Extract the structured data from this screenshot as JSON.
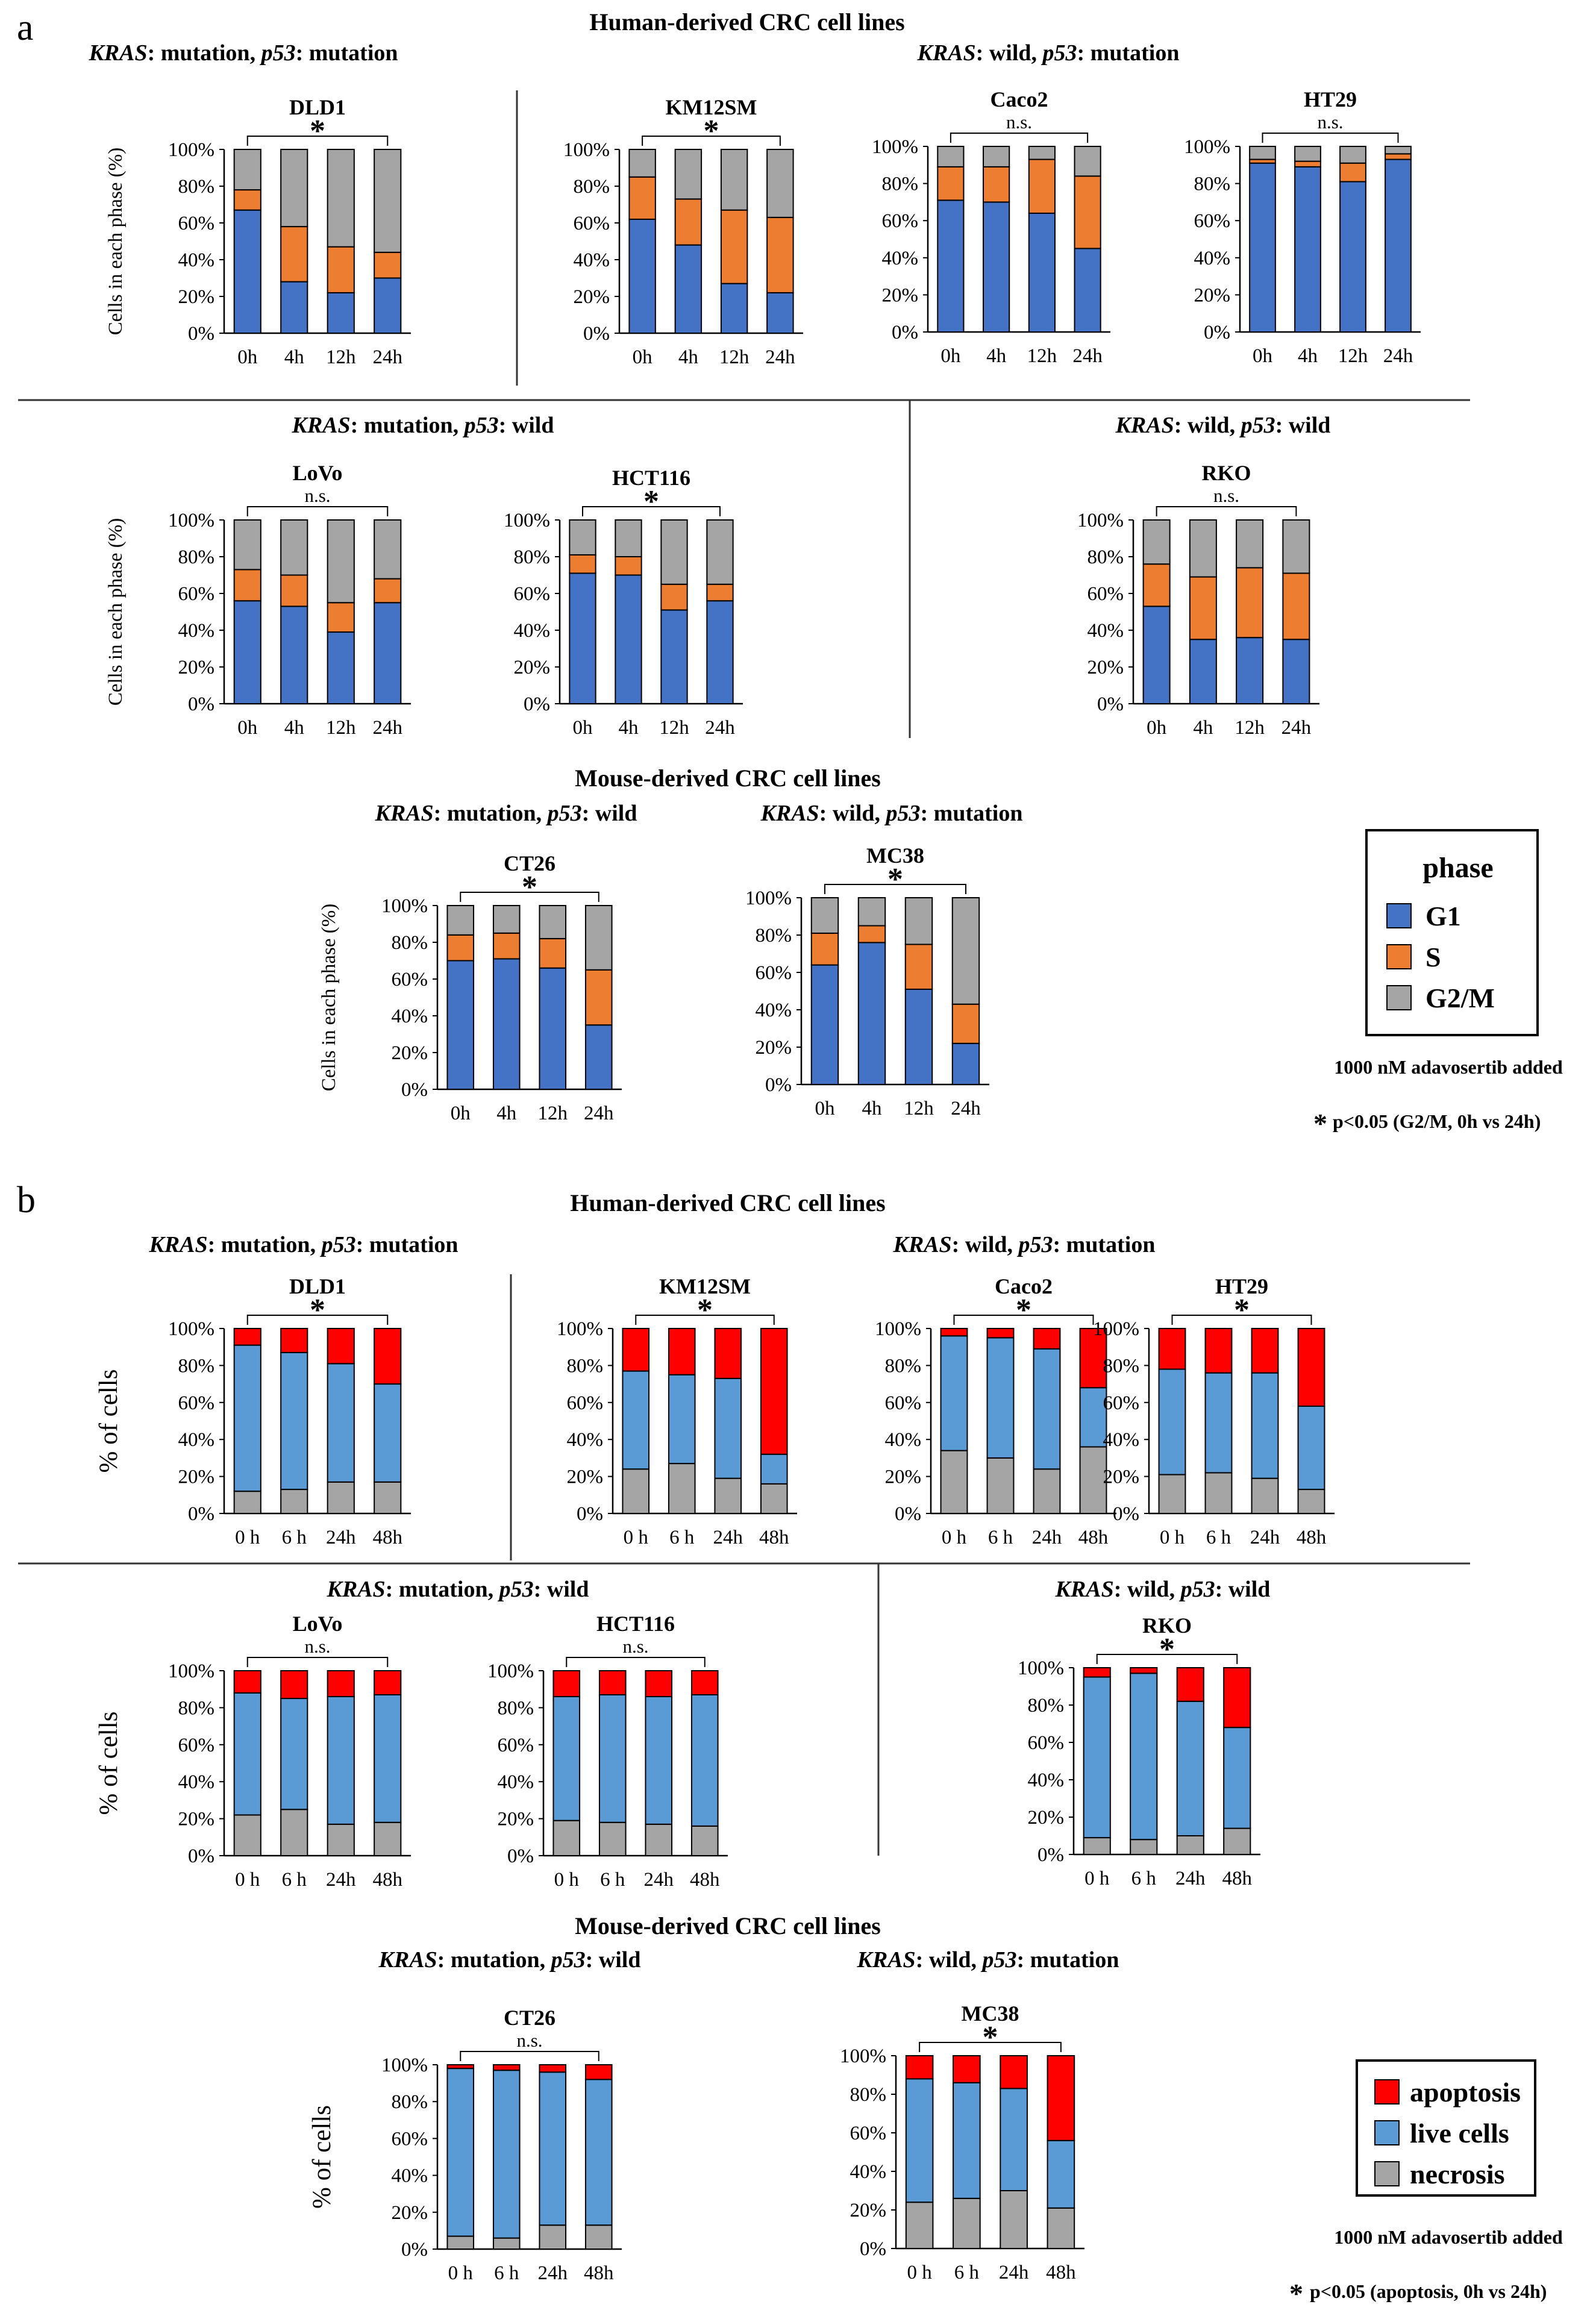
{
  "panel_a": {
    "label": "a",
    "human_title": "Human-derived CRC cell lines",
    "mouse_title": "Mouse-derived CRC cell lines",
    "legend_title": "phase",
    "legend_items": [
      "G1",
      "S",
      "G2/M"
    ],
    "colors": {
      "G1": "#4472c4",
      "S": "#ed7d31",
      "G2/M": "#a5a5a5"
    },
    "note": "1000 nM adavosertib added",
    "sig_note": "p<0.05 (G2/M, 0h vs 24h)",
    "sig_star": "*"
  },
  "panel_b": {
    "label": "b",
    "human_title": "Human-derived CRC cell lines",
    "mouse_title": "Mouse-derived CRC cell lines",
    "legend_items": [
      "apoptosis",
      "live cells",
      "necrosis"
    ],
    "colors": {
      "apoptosis": "#ff0000",
      "live cells": "#5b9bd5",
      "necrosis": "#a5a5a5"
    },
    "note": "1000 nM adavosertib added",
    "sig_note": "p<0.05 (apoptosis, 0h vs 24h)",
    "sig_star": "*"
  },
  "group_labels": [
    {
      "gene1": "KRAS",
      "rest1": ": mutation, ",
      "gene2": "p53",
      "rest2": ": mutation"
    },
    {
      "gene1": "KRAS",
      "rest1": ": wild, ",
      "gene2": "p53",
      "rest2": ": mutation"
    },
    {
      "gene1": "KRAS",
      "rest1": ": mutation, ",
      "gene2": "p53",
      "rest2": ": wild"
    },
    {
      "gene1": "KRAS",
      "rest1": ": wild, ",
      "gene2": "p53",
      "rest2": ": wild"
    },
    {
      "gene1": "KRAS",
      "rest1": ": mutation, ",
      "gene2": "p53",
      "rest2": ": wild"
    },
    {
      "gene1": "KRAS",
      "rest1": ": wild, ",
      "gene2": "p53",
      "rest2": ": mutation"
    },
    {
      "gene1": "KRAS",
      "rest1": ": mutation, ",
      "gene2": "p53",
      "rest2": ": mutation"
    },
    {
      "gene1": "KRAS",
      "rest1": ": wild, ",
      "gene2": "p53",
      "rest2": ": mutation"
    },
    {
      "gene1": "KRAS",
      "rest1": ": mutation, ",
      "gene2": "p53",
      "rest2": ": wild"
    },
    {
      "gene1": "KRAS",
      "rest1": ": wild, ",
      "gene2": "p53",
      "rest2": ": wild"
    },
    {
      "gene1": "KRAS",
      "rest1": ": mutation, ",
      "gene2": "p53",
      "rest2": ": wild"
    },
    {
      "gene1": "KRAS",
      "rest1": ": wild, ",
      "gene2": "p53",
      "rest2": ": mutation"
    }
  ],
  "chart_data": [
    {
      "type": "bar",
      "stacked": true,
      "panel": "a",
      "title": "DLD1",
      "sig": "*",
      "ylabel": "Cells in each phase (%)",
      "categories": [
        "0h",
        "4h",
        "12h",
        "24h"
      ],
      "yticks": [
        "0%",
        "20%",
        "40%",
        "60%",
        "80%",
        "100%"
      ],
      "ylim": [
        0,
        100
      ],
      "series": [
        {
          "name": "G1",
          "values": [
            67,
            28,
            22,
            30
          ]
        },
        {
          "name": "S",
          "values": [
            11,
            30,
            25,
            14
          ]
        },
        {
          "name": "G2/M",
          "values": [
            22,
            42,
            53,
            56
          ]
        }
      ]
    },
    {
      "type": "bar",
      "stacked": true,
      "panel": "a",
      "title": "KM12SM",
      "sig": "*",
      "ylabel": "",
      "categories": [
        "0h",
        "4h",
        "12h",
        "24h"
      ],
      "yticks": [
        "0%",
        "20%",
        "40%",
        "60%",
        "80%",
        "100%"
      ],
      "ylim": [
        0,
        100
      ],
      "series": [
        {
          "name": "G1",
          "values": [
            62,
            48,
            27,
            22
          ]
        },
        {
          "name": "S",
          "values": [
            23,
            25,
            40,
            41
          ]
        },
        {
          "name": "G2/M",
          "values": [
            15,
            27,
            33,
            37
          ]
        }
      ]
    },
    {
      "type": "bar",
      "stacked": true,
      "panel": "a",
      "title": "Caco2",
      "sig": "n.s.",
      "ylabel": "",
      "categories": [
        "0h",
        "4h",
        "12h",
        "24h"
      ],
      "yticks": [
        "0%",
        "20%",
        "40%",
        "60%",
        "80%",
        "100%"
      ],
      "ylim": [
        0,
        100
      ],
      "series": [
        {
          "name": "G1",
          "values": [
            71,
            70,
            64,
            45
          ]
        },
        {
          "name": "S",
          "values": [
            18,
            19,
            29,
            39
          ]
        },
        {
          "name": "G2/M",
          "values": [
            11,
            11,
            7,
            16
          ]
        }
      ]
    },
    {
      "type": "bar",
      "stacked": true,
      "panel": "a",
      "title": "HT29",
      "sig": "n.s.",
      "ylabel": "",
      "categories": [
        "0h",
        "4h",
        "12h",
        "24h"
      ],
      "yticks": [
        "0%",
        "20%",
        "40%",
        "60%",
        "80%",
        "100%"
      ],
      "ylim": [
        0,
        100
      ],
      "series": [
        {
          "name": "G1",
          "values": [
            91,
            89,
            81,
            93
          ]
        },
        {
          "name": "S",
          "values": [
            2,
            3,
            10,
            3
          ]
        },
        {
          "name": "G2/M",
          "values": [
            7,
            8,
            9,
            4
          ]
        }
      ]
    },
    {
      "type": "bar",
      "stacked": true,
      "panel": "a",
      "title": "LoVo",
      "sig": "n.s.",
      "ylabel": "Cells in each phase (%)",
      "categories": [
        "0h",
        "4h",
        "12h",
        "24h"
      ],
      "yticks": [
        "0%",
        "20%",
        "40%",
        "60%",
        "80%",
        "100%"
      ],
      "ylim": [
        0,
        100
      ],
      "series": [
        {
          "name": "G1",
          "values": [
            56,
            53,
            39,
            55
          ]
        },
        {
          "name": "S",
          "values": [
            17,
            17,
            16,
            13
          ]
        },
        {
          "name": "G2/M",
          "values": [
            27,
            30,
            45,
            32
          ]
        }
      ]
    },
    {
      "type": "bar",
      "stacked": true,
      "panel": "a",
      "title": "HCT116",
      "sig": "*",
      "ylabel": "",
      "categories": [
        "0h",
        "4h",
        "12h",
        "24h"
      ],
      "yticks": [
        "0%",
        "20%",
        "40%",
        "60%",
        "80%",
        "100%"
      ],
      "ylim": [
        0,
        100
      ],
      "series": [
        {
          "name": "G1",
          "values": [
            71,
            70,
            51,
            56
          ]
        },
        {
          "name": "S",
          "values": [
            10,
            10,
            14,
            9
          ]
        },
        {
          "name": "G2/M",
          "values": [
            19,
            20,
            35,
            35
          ]
        }
      ]
    },
    {
      "type": "bar",
      "stacked": true,
      "panel": "a",
      "title": "RKO",
      "sig": "n.s.",
      "ylabel": "",
      "categories": [
        "0h",
        "4h",
        "12h",
        "24h"
      ],
      "yticks": [
        "0%",
        "20%",
        "40%",
        "60%",
        "80%",
        "100%"
      ],
      "ylim": [
        0,
        100
      ],
      "series": [
        {
          "name": "G1",
          "values": [
            53,
            35,
            36,
            35
          ]
        },
        {
          "name": "S",
          "values": [
            23,
            34,
            38,
            36
          ]
        },
        {
          "name": "G2/M",
          "values": [
            24,
            31,
            26,
            29
          ]
        }
      ]
    },
    {
      "type": "bar",
      "stacked": true,
      "panel": "a",
      "title": "CT26",
      "sig": "*",
      "ylabel": "Cells in each phase (%)",
      "categories": [
        "0h",
        "4h",
        "12h",
        "24h"
      ],
      "yticks": [
        "0%",
        "20%",
        "40%",
        "60%",
        "80%",
        "100%"
      ],
      "ylim": [
        0,
        100
      ],
      "series": [
        {
          "name": "G1",
          "values": [
            70,
            71,
            66,
            35
          ]
        },
        {
          "name": "S",
          "values": [
            14,
            14,
            16,
            30
          ]
        },
        {
          "name": "G2/M",
          "values": [
            16,
            15,
            18,
            35
          ]
        }
      ]
    },
    {
      "type": "bar",
      "stacked": true,
      "panel": "a",
      "title": "MC38",
      "sig": "*",
      "ylabel": "",
      "categories": [
        "0h",
        "4h",
        "12h",
        "24h"
      ],
      "yticks": [
        "0%",
        "20%",
        "40%",
        "60%",
        "80%",
        "100%"
      ],
      "ylim": [
        0,
        100
      ],
      "series": [
        {
          "name": "G1",
          "values": [
            64,
            76,
            51,
            22
          ]
        },
        {
          "name": "S",
          "values": [
            17,
            9,
            24,
            21
          ]
        },
        {
          "name": "G2/M",
          "values": [
            19,
            15,
            25,
            57
          ]
        }
      ]
    },
    {
      "type": "bar",
      "stacked": true,
      "panel": "b",
      "title": "DLD1",
      "sig": "*",
      "ylabel": "% of cells",
      "categories": [
        "0 h",
        "6 h",
        "24h",
        "48h"
      ],
      "yticks": [
        "0%",
        "20%",
        "40%",
        "60%",
        "80%",
        "100%"
      ],
      "ylim": [
        0,
        100
      ],
      "series": [
        {
          "name": "necrosis",
          "values": [
            12,
            13,
            17,
            17
          ]
        },
        {
          "name": "live cells",
          "values": [
            79,
            74,
            64,
            53
          ]
        },
        {
          "name": "apoptosis",
          "values": [
            9,
            13,
            19,
            30
          ]
        }
      ]
    },
    {
      "type": "bar",
      "stacked": true,
      "panel": "b",
      "title": "KM12SM",
      "sig": "*",
      "ylabel": "",
      "categories": [
        "0 h",
        "6 h",
        "24h",
        "48h"
      ],
      "yticks": [
        "0%",
        "20%",
        "40%",
        "60%",
        "80%",
        "100%"
      ],
      "ylim": [
        0,
        100
      ],
      "series": [
        {
          "name": "necrosis",
          "values": [
            24,
            27,
            19,
            16
          ]
        },
        {
          "name": "live cells",
          "values": [
            53,
            48,
            54,
            16
          ]
        },
        {
          "name": "apoptosis",
          "values": [
            23,
            25,
            27,
            68
          ]
        }
      ]
    },
    {
      "type": "bar",
      "stacked": true,
      "panel": "b",
      "title": "Caco2",
      "sig": "*",
      "ylabel": "",
      "categories": [
        "0 h",
        "6 h",
        "24h",
        "48h"
      ],
      "yticks": [
        "0%",
        "20%",
        "40%",
        "60%",
        "80%",
        "100%"
      ],
      "ylim": [
        0,
        100
      ],
      "series": [
        {
          "name": "necrosis",
          "values": [
            34,
            30,
            24,
            36
          ]
        },
        {
          "name": "live cells",
          "values": [
            62,
            65,
            65,
            32
          ]
        },
        {
          "name": "apoptosis",
          "values": [
            4,
            5,
            11,
            32
          ]
        }
      ]
    },
    {
      "type": "bar",
      "stacked": true,
      "panel": "b",
      "title": "HT29",
      "sig": "*",
      "ylabel": "",
      "categories": [
        "0 h",
        "6 h",
        "24h",
        "48h"
      ],
      "yticks": [
        "0%",
        "20%",
        "40%",
        "60%",
        "80%",
        "100%"
      ],
      "ylim": [
        0,
        100
      ],
      "series": [
        {
          "name": "necrosis",
          "values": [
            21,
            22,
            19,
            13
          ]
        },
        {
          "name": "live cells",
          "values": [
            57,
            54,
            57,
            45
          ]
        },
        {
          "name": "apoptosis",
          "values": [
            22,
            24,
            24,
            42
          ]
        }
      ]
    },
    {
      "type": "bar",
      "stacked": true,
      "panel": "b",
      "title": "LoVo",
      "sig": "n.s.",
      "ylabel": "% of cells",
      "categories": [
        "0 h",
        "6 h",
        "24h",
        "48h"
      ],
      "yticks": [
        "0%",
        "20%",
        "40%",
        "60%",
        "80%",
        "100%"
      ],
      "ylim": [
        0,
        100
      ],
      "series": [
        {
          "name": "necrosis",
          "values": [
            22,
            25,
            17,
            18
          ]
        },
        {
          "name": "live cells",
          "values": [
            66,
            60,
            69,
            69
          ]
        },
        {
          "name": "apoptosis",
          "values": [
            12,
            15,
            14,
            13
          ]
        }
      ]
    },
    {
      "type": "bar",
      "stacked": true,
      "panel": "b",
      "title": "HCT116",
      "sig": "n.s.",
      "ylabel": "",
      "categories": [
        "0 h",
        "6 h",
        "24h",
        "48h"
      ],
      "yticks": [
        "0%",
        "20%",
        "40%",
        "60%",
        "80%",
        "100%"
      ],
      "ylim": [
        0,
        100
      ],
      "series": [
        {
          "name": "necrosis",
          "values": [
            19,
            18,
            17,
            16
          ]
        },
        {
          "name": "live cells",
          "values": [
            67,
            69,
            69,
            71
          ]
        },
        {
          "name": "apoptosis",
          "values": [
            14,
            13,
            14,
            13
          ]
        }
      ]
    },
    {
      "type": "bar",
      "stacked": true,
      "panel": "b",
      "title": "RKO",
      "sig": "*",
      "ylabel": "",
      "categories": [
        "0 h",
        "6 h",
        "24h",
        "48h"
      ],
      "yticks": [
        "0%",
        "20%",
        "40%",
        "60%",
        "80%",
        "100%"
      ],
      "ylim": [
        0,
        100
      ],
      "series": [
        {
          "name": "necrosis",
          "values": [
            9,
            8,
            10,
            14
          ]
        },
        {
          "name": "live cells",
          "values": [
            86,
            89,
            72,
            54
          ]
        },
        {
          "name": "apoptosis",
          "values": [
            5,
            3,
            18,
            32
          ]
        }
      ]
    },
    {
      "type": "bar",
      "stacked": true,
      "panel": "b",
      "title": "CT26",
      "sig": "n.s.",
      "ylabel": "% of cells",
      "categories": [
        "0 h",
        "6 h",
        "24h",
        "48h"
      ],
      "yticks": [
        "0%",
        "20%",
        "40%",
        "60%",
        "80%",
        "100%"
      ],
      "ylim": [
        0,
        100
      ],
      "series": [
        {
          "name": "necrosis",
          "values": [
            7,
            6,
            13,
            13
          ]
        },
        {
          "name": "live cells",
          "values": [
            91,
            91,
            83,
            79
          ]
        },
        {
          "name": "apoptosis",
          "values": [
            2,
            3,
            4,
            8
          ]
        }
      ]
    },
    {
      "type": "bar",
      "stacked": true,
      "panel": "b",
      "title": "MC38",
      "sig": "*",
      "ylabel": "",
      "categories": [
        "0 h",
        "6 h",
        "24h",
        "48h"
      ],
      "yticks": [
        "0%",
        "20%",
        "40%",
        "60%",
        "80%",
        "100%"
      ],
      "ylim": [
        0,
        100
      ],
      "series": [
        {
          "name": "necrosis",
          "values": [
            24,
            26,
            30,
            21
          ]
        },
        {
          "name": "live cells",
          "values": [
            64,
            60,
            53,
            35
          ]
        },
        {
          "name": "apoptosis",
          "values": [
            12,
            14,
            17,
            44
          ]
        }
      ]
    }
  ]
}
